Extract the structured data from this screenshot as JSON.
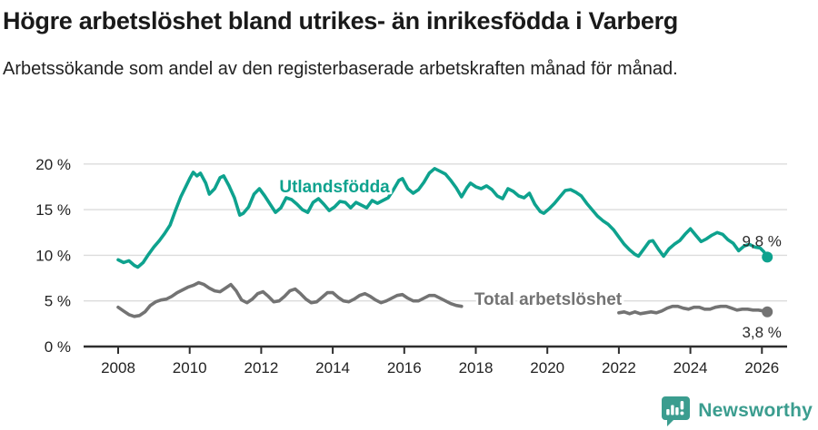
{
  "header": {
    "title": "Högre arbetslöshet bland utrikes- än inrikesfödda i Varberg",
    "subtitle": "Arbetssökande som andel av den registerbaserade arbetskraften månad för månad."
  },
  "chart_data": {
    "type": "line",
    "title": "Högre arbetslöshet bland utrikes- än inrikesfödda i Varberg",
    "subtitle": "Arbetssökande som andel av den registerbaserade arbetskraften månad för månad.",
    "grid": "horizontal-only",
    "legend_position": "inline-labels",
    "x_axis": {
      "ticks": [
        2008,
        2010,
        2012,
        2014,
        2016,
        2018,
        2020,
        2022,
        2024,
        2026
      ],
      "range": [
        2007.1,
        2026.7
      ]
    },
    "y_axis": {
      "ticks": [
        {
          "value": 0,
          "label": "0 %"
        },
        {
          "value": 5,
          "label": "5 %"
        },
        {
          "value": 10,
          "label": "10 %"
        },
        {
          "value": 15,
          "label": "15 %"
        },
        {
          "value": 20,
          "label": "20 %"
        }
      ],
      "range": [
        0,
        20
      ]
    },
    "colors": {
      "gridline": "#dcdcdc",
      "axis": "#2e2e2e",
      "tick_label": "#222222",
      "end_label_text": "#2b2b2b"
    },
    "series": [
      {
        "name": "Utlandsfödda",
        "color": "#0ea28e",
        "label_pos": {
          "x": 2014.05,
          "y": 16.9
        },
        "end_label": "9,8 %",
        "end_value": 9.8,
        "end_label_pos": {
          "x": 2026.55,
          "y": 11.0
        },
        "points": [
          [
            2008.0,
            9.5
          ],
          [
            2008.15,
            9.2
          ],
          [
            2008.3,
            9.4
          ],
          [
            2008.45,
            8.9
          ],
          [
            2008.55,
            8.7
          ],
          [
            2008.7,
            9.2
          ],
          [
            2008.85,
            10.1
          ],
          [
            2009.0,
            10.9
          ],
          [
            2009.15,
            11.6
          ],
          [
            2009.3,
            12.4
          ],
          [
            2009.45,
            13.3
          ],
          [
            2009.6,
            14.9
          ],
          [
            2009.75,
            16.4
          ],
          [
            2009.9,
            17.6
          ],
          [
            2010.0,
            18.4
          ],
          [
            2010.1,
            19.1
          ],
          [
            2010.2,
            18.7
          ],
          [
            2010.3,
            19.0
          ],
          [
            2010.45,
            17.9
          ],
          [
            2010.55,
            16.7
          ],
          [
            2010.7,
            17.3
          ],
          [
            2010.85,
            18.5
          ],
          [
            2010.95,
            18.7
          ],
          [
            2011.1,
            17.6
          ],
          [
            2011.25,
            16.3
          ],
          [
            2011.4,
            14.4
          ],
          [
            2011.5,
            14.6
          ],
          [
            2011.65,
            15.3
          ],
          [
            2011.8,
            16.7
          ],
          [
            2011.95,
            17.3
          ],
          [
            2012.1,
            16.5
          ],
          [
            2012.25,
            15.6
          ],
          [
            2012.4,
            14.7
          ],
          [
            2012.55,
            15.2
          ],
          [
            2012.7,
            16.3
          ],
          [
            2012.85,
            16.1
          ],
          [
            2013.0,
            15.6
          ],
          [
            2013.15,
            15.0
          ],
          [
            2013.3,
            14.7
          ],
          [
            2013.45,
            15.8
          ],
          [
            2013.6,
            16.2
          ],
          [
            2013.75,
            15.6
          ],
          [
            2013.9,
            14.9
          ],
          [
            2014.05,
            15.3
          ],
          [
            2014.2,
            15.9
          ],
          [
            2014.35,
            15.8
          ],
          [
            2014.5,
            15.2
          ],
          [
            2014.65,
            15.8
          ],
          [
            2014.8,
            15.5
          ],
          [
            2014.95,
            15.2
          ],
          [
            2015.1,
            16.0
          ],
          [
            2015.25,
            15.7
          ],
          [
            2015.4,
            16.0
          ],
          [
            2015.55,
            16.3
          ],
          [
            2015.7,
            17.2
          ],
          [
            2015.85,
            18.2
          ],
          [
            2015.95,
            18.4
          ],
          [
            2016.1,
            17.3
          ],
          [
            2016.25,
            16.8
          ],
          [
            2016.4,
            17.2
          ],
          [
            2016.55,
            18.0
          ],
          [
            2016.7,
            19.0
          ],
          [
            2016.85,
            19.5
          ],
          [
            2017.0,
            19.2
          ],
          [
            2017.15,
            18.9
          ],
          [
            2017.3,
            18.2
          ],
          [
            2017.45,
            17.4
          ],
          [
            2017.6,
            16.4
          ],
          [
            2017.75,
            17.4
          ],
          [
            2017.85,
            17.9
          ],
          [
            2018.0,
            17.5
          ],
          [
            2018.15,
            17.3
          ],
          [
            2018.3,
            17.6
          ],
          [
            2018.45,
            17.2
          ],
          [
            2018.6,
            16.5
          ],
          [
            2018.75,
            16.2
          ],
          [
            2018.9,
            17.3
          ],
          [
            2019.05,
            17.0
          ],
          [
            2019.2,
            16.5
          ],
          [
            2019.35,
            16.3
          ],
          [
            2019.5,
            16.8
          ],
          [
            2019.65,
            15.6
          ],
          [
            2019.8,
            14.8
          ],
          [
            2019.9,
            14.6
          ],
          [
            2020.05,
            15.1
          ],
          [
            2020.2,
            15.7
          ],
          [
            2020.35,
            16.4
          ],
          [
            2020.5,
            17.1
          ],
          [
            2020.65,
            17.2
          ],
          [
            2020.8,
            16.9
          ],
          [
            2020.95,
            16.5
          ],
          [
            2021.1,
            15.7
          ],
          [
            2021.25,
            15.0
          ],
          [
            2021.4,
            14.3
          ],
          [
            2021.55,
            13.8
          ],
          [
            2021.7,
            13.4
          ],
          [
            2021.85,
            12.8
          ],
          [
            2022.0,
            12.0
          ],
          [
            2022.15,
            11.2
          ],
          [
            2022.3,
            10.6
          ],
          [
            2022.45,
            10.1
          ],
          [
            2022.55,
            9.9
          ],
          [
            2022.7,
            10.7
          ],
          [
            2022.85,
            11.5
          ],
          [
            2022.95,
            11.6
          ],
          [
            2023.1,
            10.7
          ],
          [
            2023.25,
            9.9
          ],
          [
            2023.4,
            10.7
          ],
          [
            2023.55,
            11.2
          ],
          [
            2023.7,
            11.6
          ],
          [
            2023.85,
            12.3
          ],
          [
            2024.0,
            12.9
          ],
          [
            2024.15,
            12.2
          ],
          [
            2024.3,
            11.5
          ],
          [
            2024.45,
            11.8
          ],
          [
            2024.6,
            12.2
          ],
          [
            2024.75,
            12.5
          ],
          [
            2024.9,
            12.3
          ],
          [
            2025.05,
            11.7
          ],
          [
            2025.2,
            11.3
          ],
          [
            2025.35,
            10.5
          ],
          [
            2025.5,
            11.0
          ],
          [
            2025.65,
            11.2
          ],
          [
            2025.8,
            10.9
          ],
          [
            2025.95,
            10.8
          ],
          [
            2026.05,
            10.4
          ],
          [
            2026.15,
            9.8
          ]
        ]
      },
      {
        "name": "Total arbetslöshet",
        "color": "#737373",
        "label_pos": {
          "x": 2020.02,
          "y": 4.55
        },
        "end_label": "3,8 %",
        "end_value": 3.8,
        "end_label_pos": {
          "x": 2026.55,
          "y": 1.0
        },
        "points": [
          [
            2008.0,
            4.3
          ],
          [
            2008.15,
            3.9
          ],
          [
            2008.3,
            3.5
          ],
          [
            2008.45,
            3.3
          ],
          [
            2008.6,
            3.4
          ],
          [
            2008.75,
            3.8
          ],
          [
            2008.9,
            4.5
          ],
          [
            2009.05,
            4.9
          ],
          [
            2009.2,
            5.1
          ],
          [
            2009.35,
            5.2
          ],
          [
            2009.5,
            5.5
          ],
          [
            2009.65,
            5.9
          ],
          [
            2009.8,
            6.2
          ],
          [
            2009.95,
            6.5
          ],
          [
            2010.1,
            6.7
          ],
          [
            2010.25,
            7.0
          ],
          [
            2010.4,
            6.8
          ],
          [
            2010.55,
            6.4
          ],
          [
            2010.7,
            6.1
          ],
          [
            2010.85,
            6.0
          ],
          [
            2011.0,
            6.4
          ],
          [
            2011.15,
            6.8
          ],
          [
            2011.3,
            6.1
          ],
          [
            2011.45,
            5.1
          ],
          [
            2011.6,
            4.8
          ],
          [
            2011.75,
            5.2
          ],
          [
            2011.9,
            5.8
          ],
          [
            2012.05,
            6.0
          ],
          [
            2012.2,
            5.5
          ],
          [
            2012.35,
            4.9
          ],
          [
            2012.5,
            5.0
          ],
          [
            2012.65,
            5.5
          ],
          [
            2012.8,
            6.1
          ],
          [
            2012.95,
            6.3
          ],
          [
            2013.1,
            5.8
          ],
          [
            2013.25,
            5.2
          ],
          [
            2013.4,
            4.8
          ],
          [
            2013.55,
            4.9
          ],
          [
            2013.7,
            5.4
          ],
          [
            2013.85,
            5.9
          ],
          [
            2014.0,
            5.9
          ],
          [
            2014.15,
            5.4
          ],
          [
            2014.3,
            5.0
          ],
          [
            2014.45,
            4.9
          ],
          [
            2014.6,
            5.2
          ],
          [
            2014.75,
            5.6
          ],
          [
            2014.9,
            5.8
          ],
          [
            2015.05,
            5.5
          ],
          [
            2015.2,
            5.1
          ],
          [
            2015.35,
            4.8
          ],
          [
            2015.5,
            5.0
          ],
          [
            2015.65,
            5.3
          ],
          [
            2015.8,
            5.6
          ],
          [
            2015.95,
            5.7
          ],
          [
            2016.1,
            5.3
          ],
          [
            2016.25,
            5.0
          ],
          [
            2016.4,
            5.0
          ],
          [
            2016.55,
            5.3
          ],
          [
            2016.7,
            5.6
          ],
          [
            2016.85,
            5.6
          ],
          [
            2017.0,
            5.3
          ],
          [
            2017.15,
            5.0
          ],
          [
            2017.3,
            4.7
          ],
          [
            2017.45,
            4.5
          ],
          [
            2017.6,
            4.4
          ],
          [
            2019.5,
            null
          ],
          [
            2022.0,
            3.7
          ],
          [
            2022.15,
            3.8
          ],
          [
            2022.3,
            3.6
          ],
          [
            2022.45,
            3.8
          ],
          [
            2022.6,
            3.6
          ],
          [
            2022.75,
            3.7
          ],
          [
            2022.9,
            3.8
          ],
          [
            2023.05,
            3.7
          ],
          [
            2023.2,
            3.9
          ],
          [
            2023.35,
            4.2
          ],
          [
            2023.5,
            4.4
          ],
          [
            2023.65,
            4.4
          ],
          [
            2023.8,
            4.2
          ],
          [
            2023.95,
            4.1
          ],
          [
            2024.1,
            4.3
          ],
          [
            2024.25,
            4.3
          ],
          [
            2024.4,
            4.1
          ],
          [
            2024.55,
            4.1
          ],
          [
            2024.7,
            4.3
          ],
          [
            2024.85,
            4.4
          ],
          [
            2025.0,
            4.4
          ],
          [
            2025.15,
            4.2
          ],
          [
            2025.3,
            4.0
          ],
          [
            2025.45,
            4.1
          ],
          [
            2025.6,
            4.1
          ],
          [
            2025.75,
            4.0
          ],
          [
            2025.9,
            4.0
          ],
          [
            2026.05,
            3.9
          ],
          [
            2026.15,
            3.8
          ]
        ]
      }
    ]
  },
  "footer": {
    "brand": "Newsworthy",
    "brand_color": "#3b9d8f",
    "logo_icon": "speech-bubble-bar-chart-icon"
  }
}
